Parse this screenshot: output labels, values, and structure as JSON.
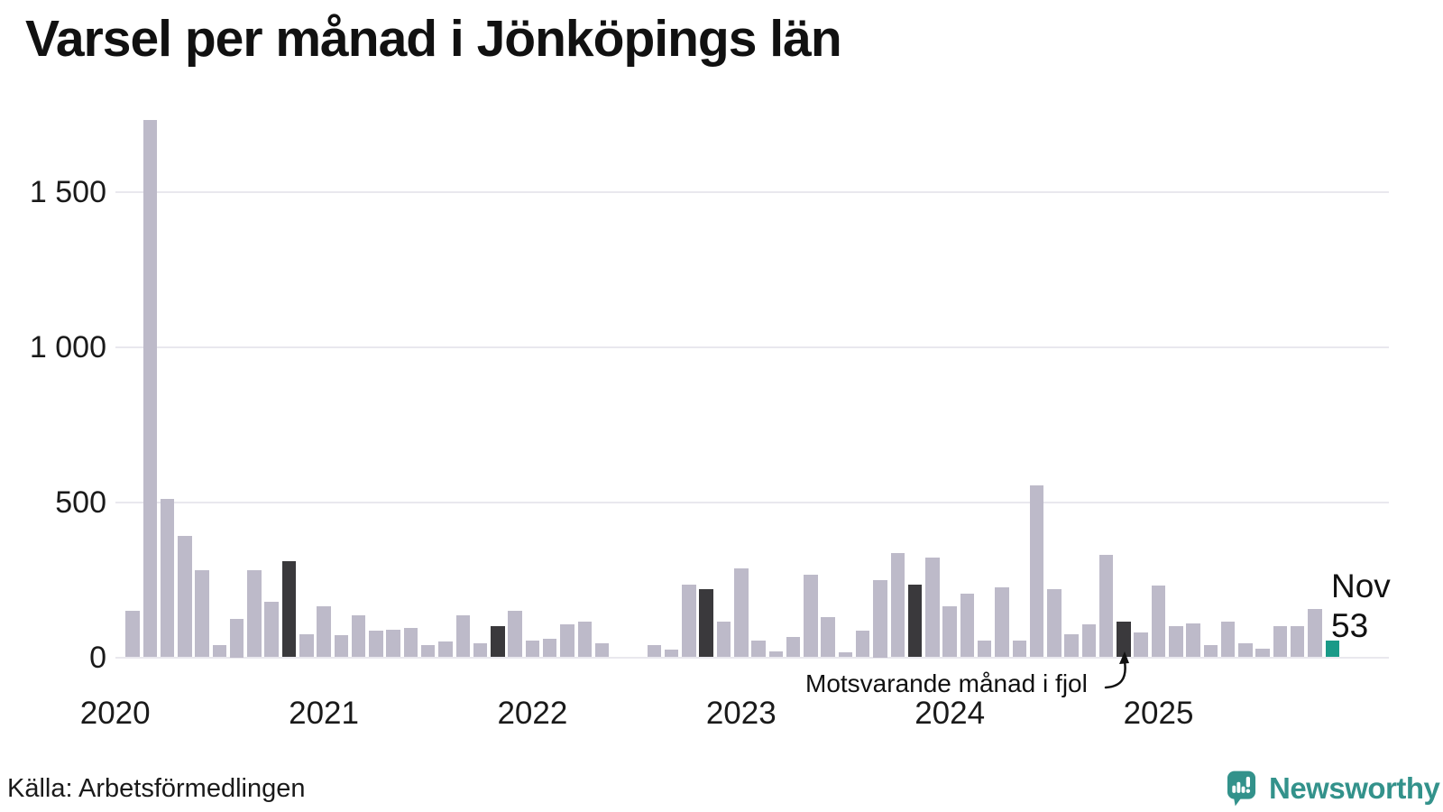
{
  "title": "Varsel per månad i Jönköpings län",
  "chart_data": {
    "type": "bar",
    "title": "Varsel per månad i Jönköpings län",
    "xlabel": "",
    "ylabel": "",
    "ylim": [
      0,
      1790
    ],
    "grid": true,
    "y_ticks": [
      0,
      500,
      1000,
      1500
    ],
    "y_tick_labels": [
      "0",
      "500",
      "1 000",
      "1 500"
    ],
    "x_year_labels": [
      "2020",
      "2021",
      "2022",
      "2023",
      "2024",
      "2025"
    ],
    "categories": [
      "2020-01",
      "2020-02",
      "2020-03",
      "2020-04",
      "2020-05",
      "2020-06",
      "2020-07",
      "2020-08",
      "2020-09",
      "2020-10",
      "2020-11",
      "2020-12",
      "2021-01",
      "2021-02",
      "2021-03",
      "2021-04",
      "2021-05",
      "2021-06",
      "2021-07",
      "2021-08",
      "2021-09",
      "2021-10",
      "2021-11",
      "2021-12",
      "2022-01",
      "2022-02",
      "2022-03",
      "2022-04",
      "2022-05",
      "2022-06",
      "2022-07",
      "2022-08",
      "2022-09",
      "2022-10",
      "2022-11",
      "2022-12",
      "2023-01",
      "2023-02",
      "2023-03",
      "2023-04",
      "2023-05",
      "2023-06",
      "2023-07",
      "2023-08",
      "2023-09",
      "2023-10",
      "2023-11",
      "2023-12",
      "2024-01",
      "2024-02",
      "2024-03",
      "2024-04",
      "2024-05",
      "2024-06",
      "2024-07",
      "2024-08",
      "2024-09",
      "2024-10",
      "2024-11",
      "2024-12",
      "2025-01",
      "2025-02",
      "2025-03",
      "2025-04",
      "2025-05",
      "2025-06",
      "2025-07",
      "2025-08",
      "2025-09",
      "2025-10",
      "2025-11"
    ],
    "values": [
      0,
      150,
      1730,
      510,
      390,
      280,
      40,
      125,
      280,
      180,
      310,
      75,
      165,
      70,
      135,
      85,
      90,
      95,
      40,
      50,
      135,
      45,
      100,
      150,
      55,
      60,
      105,
      115,
      45,
      0,
      0,
      40,
      25,
      235,
      220,
      115,
      285,
      55,
      20,
      65,
      265,
      130,
      15,
      85,
      250,
      335,
      235,
      320,
      165,
      205,
      55,
      225,
      55,
      555,
      220,
      75,
      105,
      330,
      115,
      80,
      230,
      100,
      110,
      40,
      115,
      45,
      28,
      100,
      100,
      155,
      53
    ],
    "fjol_indices": [
      10,
      22,
      34,
      46,
      58
    ],
    "current_index": 70,
    "legend_position": "none"
  },
  "annotations": {
    "fjol_label": "Motsvarande månad i fjol",
    "current_month_label": "Nov",
    "current_value": "53"
  },
  "footer": {
    "source": "Källa: Arbetsförmedlingen",
    "brand": "Newsworthy"
  },
  "colors": {
    "bar": "#bdbac9",
    "fjol": "#3a393c",
    "current": "#1a9a88",
    "grid": "#e9e8ee",
    "text": "#1a1a1a",
    "brand_teal": "#33928b"
  }
}
